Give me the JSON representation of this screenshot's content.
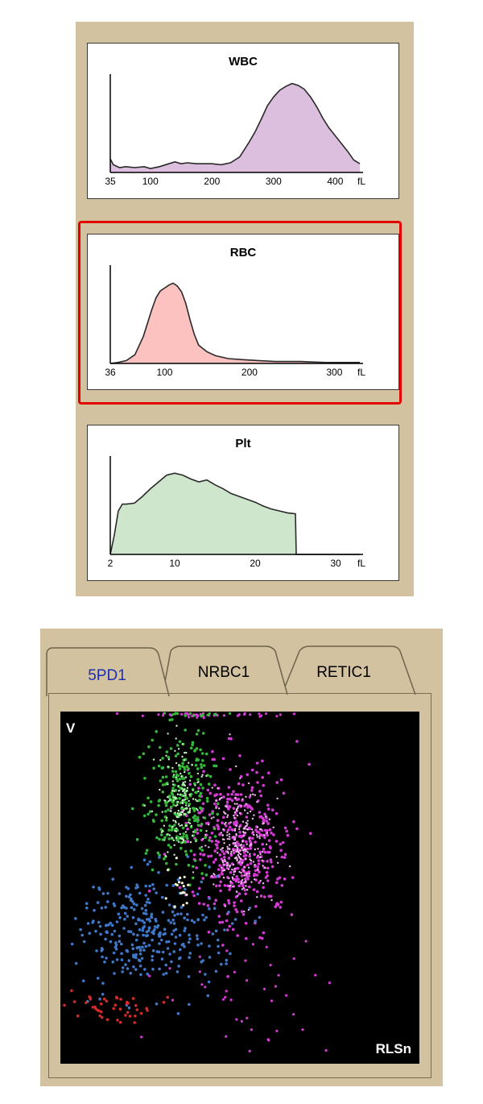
{
  "histograms": [
    {
      "id": "wbc",
      "title": "WBC",
      "fill": "#dcbfdf",
      "xlim": [
        35,
        440
      ],
      "ticks": [
        "35",
        "100",
        "200",
        "300",
        "400"
      ],
      "tick_values": [
        35,
        100,
        200,
        300,
        400
      ],
      "unit": "fL",
      "highlighted": false
    },
    {
      "id": "rbc",
      "title": "RBC",
      "fill": "#fbc2c0",
      "xlim": [
        36,
        330
      ],
      "ticks": [
        "36",
        "100",
        "200",
        "300"
      ],
      "tick_values": [
        36,
        100,
        200,
        300
      ],
      "unit": "fL",
      "highlighted": true
    },
    {
      "id": "plt",
      "title": "Plt",
      "fill": "#cde6cc",
      "xlim": [
        2,
        33
      ],
      "ticks": [
        "2",
        "10",
        "20",
        "30"
      ],
      "tick_values": [
        2,
        10,
        20,
        30
      ],
      "unit": "fL",
      "highlighted": false
    }
  ],
  "tabs": [
    {
      "label": "5PD1",
      "active": true,
      "color": "#1c2fb0"
    },
    {
      "label": "NRBC1",
      "active": false,
      "color": "#000000"
    },
    {
      "label": "RETIC1",
      "active": false,
      "color": "#000000"
    }
  ],
  "scatter": {
    "y_label": "V",
    "x_label": "RLSn"
  },
  "chart_data": [
    {
      "type": "area",
      "title": "WBC",
      "x_unit": "fL",
      "xlim": [
        35,
        440
      ],
      "ylim": [
        0,
        100
      ],
      "x": [
        35,
        40,
        50,
        60,
        75,
        90,
        100,
        115,
        130,
        140,
        150,
        160,
        175,
        190,
        200,
        215,
        230,
        245,
        260,
        270,
        280,
        290,
        300,
        310,
        320,
        330,
        340,
        350,
        360,
        370,
        380,
        390,
        400,
        410,
        420,
        430,
        440
      ],
      "values": [
        14,
        8,
        5,
        6,
        5,
        6,
        4,
        6,
        9,
        11,
        9,
        10,
        9,
        9,
        9,
        8,
        10,
        16,
        31,
        42,
        55,
        69,
        78,
        85,
        89,
        92,
        90,
        86,
        78,
        68,
        56,
        46,
        38,
        30,
        22,
        13,
        9
      ]
    },
    {
      "type": "area",
      "title": "RBC",
      "x_unit": "fL",
      "xlim": [
        36,
        330
      ],
      "ylim": [
        0,
        100
      ],
      "x": [
        36,
        45,
        55,
        65,
        75,
        85,
        90,
        95,
        100,
        105,
        110,
        115,
        120,
        125,
        130,
        135,
        140,
        150,
        160,
        175,
        190,
        210,
        230,
        260,
        290,
        330
      ],
      "values": [
        0,
        1,
        3,
        9,
        28,
        56,
        68,
        75,
        78,
        81,
        83,
        80,
        74,
        62,
        45,
        30,
        19,
        12,
        8,
        5,
        4,
        3,
        2,
        2,
        1,
        1
      ]
    },
    {
      "type": "area",
      "title": "Plt",
      "x_unit": "fL",
      "xlim": [
        2,
        33
      ],
      "ylim": [
        0,
        100
      ],
      "x": [
        2,
        2.5,
        3,
        3.5,
        4,
        5,
        6,
        7,
        8,
        9,
        10,
        11,
        12,
        13,
        14,
        15,
        16,
        17,
        18,
        19,
        20,
        21,
        22,
        23,
        24,
        25,
        25.1,
        33
      ],
      "values": [
        0,
        20,
        45,
        52,
        52,
        53,
        60,
        68,
        75,
        82,
        84,
        82,
        78,
        75,
        77,
        72,
        68,
        63,
        60,
        57,
        54,
        50,
        47,
        45,
        43,
        42,
        0,
        0
      ]
    }
  ],
  "colors": {
    "panel": "#d2c2a0",
    "highlight": "#e30000",
    "clusters": {
      "neutrophil": "#d53bd4",
      "neutrophil_core": "#f0b8ef",
      "eosinophil": "#34b838",
      "eosinophil_core": "#c8f0c6",
      "lymphocyte": "#3f78c8",
      "monocyte_debris": "#d32a2a",
      "other": "#f4f4d0"
    }
  }
}
